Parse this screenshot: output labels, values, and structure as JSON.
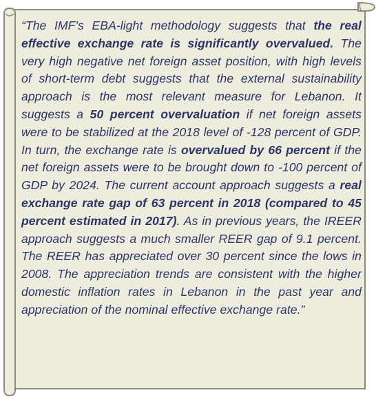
{
  "quote": {
    "colors": {
      "paper": "#eeecdd",
      "border": "#8c8b73",
      "text": "#2a3668"
    },
    "segments": [
      {
        "text": "“The IMF’s EBA-light methodology suggests that ",
        "bold": false
      },
      {
        "text": "the real effective exchange rate is significantly overvalued.",
        "bold": true
      },
      {
        "text": " The very high negative net foreign asset position, with high levels of short-term debt suggests that the external sustainability approach is the most relevant measure for Lebanon. It suggests a ",
        "bold": false
      },
      {
        "text": "50 percent overvaluation",
        "bold": true
      },
      {
        "text": " if net foreign assets were to be stabilized at the 2018 level of -128 percent of GDP. In turn, the exchange rate is ",
        "bold": false
      },
      {
        "text": "overvalued by 66 percent",
        "bold": true
      },
      {
        "text": " if the net foreign assets were to be brought down to -100 percent of GDP by 2024. The current account approach suggests a ",
        "bold": false
      },
      {
        "text": "real exchange rate gap of 63 percent in 2018 (compared to 45 percent estimated in 2017)",
        "bold": true
      },
      {
        "text": ". As in previous years, the IREER approach suggests a much smaller REER gap of 9.1 percent. The REER has appreciated over 30 percent since the lows in 2008. The appreciation trends are consistent with the higher domestic inflation rates in Lebanon in the past year and appreciation of the nominal effective exchange rate.”",
        "bold": false
      }
    ]
  }
}
